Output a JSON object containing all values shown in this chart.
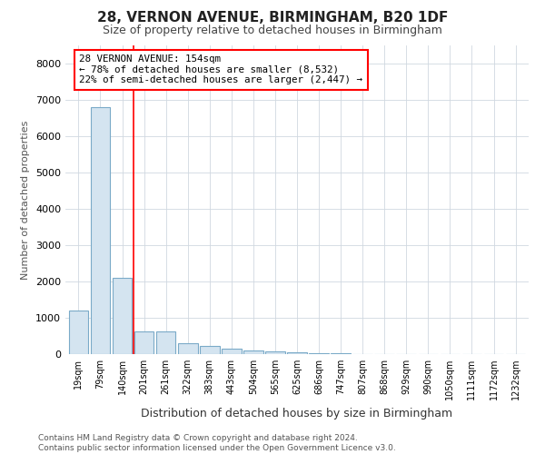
{
  "title1": "28, VERNON AVENUE, BIRMINGHAM, B20 1DF",
  "title2": "Size of property relative to detached houses in Birmingham",
  "xlabel": "Distribution of detached houses by size in Birmingham",
  "ylabel": "Number of detached properties",
  "footnote1": "Contains HM Land Registry data © Crown copyright and database right 2024.",
  "footnote2": "Contains public sector information licensed under the Open Government Licence v3.0.",
  "bar_labels": [
    "19sqm",
    "79sqm",
    "140sqm",
    "201sqm",
    "261sqm",
    "322sqm",
    "383sqm",
    "443sqm",
    "504sqm",
    "565sqm",
    "625sqm",
    "686sqm",
    "747sqm",
    "807sqm",
    "868sqm",
    "929sqm",
    "990sqm",
    "1050sqm",
    "1111sqm",
    "1172sqm",
    "1232sqm"
  ],
  "bar_values": [
    1200,
    6800,
    2100,
    620,
    620,
    300,
    220,
    150,
    110,
    80,
    55,
    35,
    20,
    12,
    8,
    4,
    2,
    1,
    1,
    0,
    0
  ],
  "bar_color": "#d4e4f0",
  "bar_edge_color": "#7aaac8",
  "red_line_index": 2.5,
  "annotation_line1": "28 VERNON AVENUE: 154sqm",
  "annotation_line2": "← 78% of detached houses are smaller (8,532)",
  "annotation_line3": "22% of semi-detached houses are larger (2,447) →",
  "ylim": [
    0,
    8500
  ],
  "yticks": [
    0,
    1000,
    2000,
    3000,
    4000,
    5000,
    6000,
    7000,
    8000
  ],
  "grid_color": "#d0d8e0",
  "background_color": "#ffffff"
}
